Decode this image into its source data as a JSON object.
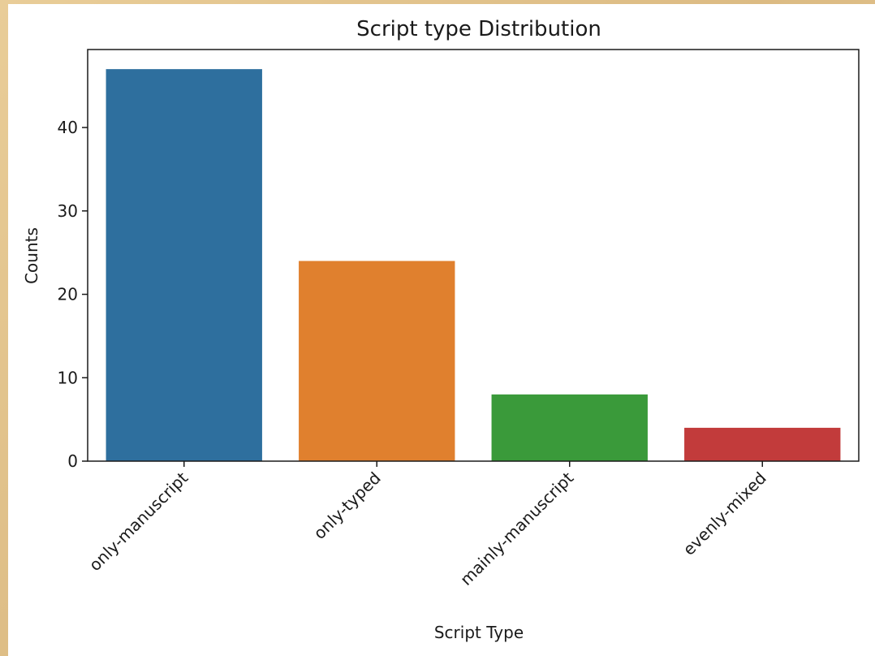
{
  "chart_data": {
    "type": "bar",
    "title": "Script type Distribution",
    "xlabel": "Script Type",
    "ylabel": "Counts",
    "categories": [
      "only-manuscript",
      "only-typed",
      "mainly-manuscript",
      "evenly-mixed"
    ],
    "values": [
      47,
      24,
      8,
      4
    ],
    "colors": [
      "#2e6f9e",
      "#e0802e",
      "#3a9a3a",
      "#c23b3b"
    ],
    "yticks": [
      0,
      10,
      20,
      30,
      40
    ],
    "ylim": [
      0,
      49.35
    ],
    "grid": false,
    "legend": "none"
  }
}
